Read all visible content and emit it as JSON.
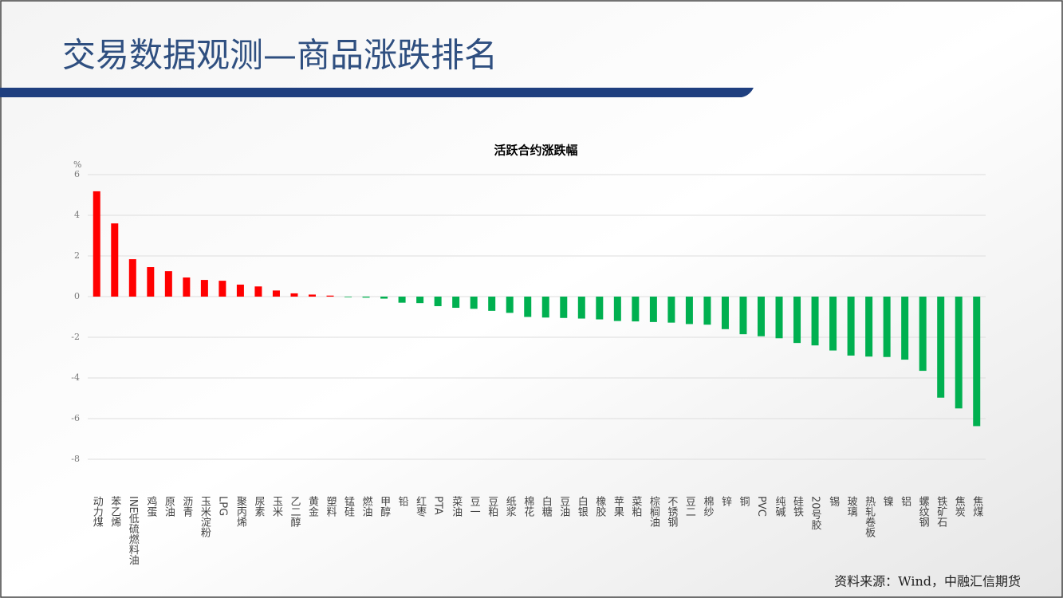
{
  "header": {
    "title": "交易数据观测—商品涨跌排名"
  },
  "chart_data": {
    "type": "bar",
    "title": "活跃合约涨跌幅",
    "y_label": "%",
    "categories": [
      "动力煤",
      "苯乙烯",
      "INE低硫燃料油",
      "鸡蛋",
      "原油",
      "沥青",
      "玉米淀粉",
      "LPG",
      "聚丙烯",
      "尿素",
      "玉米",
      "乙二醇",
      "黄金",
      "塑料",
      "锰硅",
      "燃油",
      "甲醇",
      "铅",
      "红枣",
      "PTA",
      "菜油",
      "豆一",
      "豆粕",
      "纸浆",
      "棉花",
      "白糖",
      "豆油",
      "白银",
      "橡胶",
      "苹果",
      "菜粕",
      "棕榈油",
      "不锈钢",
      "豆二",
      "棉纱",
      "锌",
      "铜",
      "PVC",
      "纯碱",
      "硅铁",
      "20号胶",
      "锡",
      "玻璃",
      "热轧卷板",
      "镍",
      "铝",
      "螺纹钢",
      "铁矿石",
      "焦炭",
      "焦煤"
    ],
    "values": [
      5.18,
      3.6,
      1.84,
      1.45,
      1.25,
      0.94,
      0.82,
      0.78,
      0.59,
      0.5,
      0.3,
      0.16,
      0.1,
      0.05,
      -0.03,
      -0.05,
      -0.1,
      -0.3,
      -0.32,
      -0.47,
      -0.55,
      -0.6,
      -0.7,
      -0.8,
      -1.0,
      -1.03,
      -1.05,
      -1.08,
      -1.12,
      -1.2,
      -1.22,
      -1.25,
      -1.28,
      -1.35,
      -1.38,
      -1.6,
      -1.85,
      -1.95,
      -2.05,
      -2.28,
      -2.4,
      -2.65,
      -2.9,
      -2.95,
      -2.97,
      -3.1,
      -3.65,
      -4.97,
      -5.5,
      -6.37
    ],
    "colors": {
      "positive": "#ff0000",
      "negative": "#00b050"
    },
    "ylim": [
      -8,
      6
    ],
    "yticks": [
      -8,
      -6,
      -4,
      -2,
      0,
      2,
      4,
      6
    ],
    "grid": true
  },
  "footer": {
    "source": "资料来源：Wind，中融汇信期货"
  }
}
